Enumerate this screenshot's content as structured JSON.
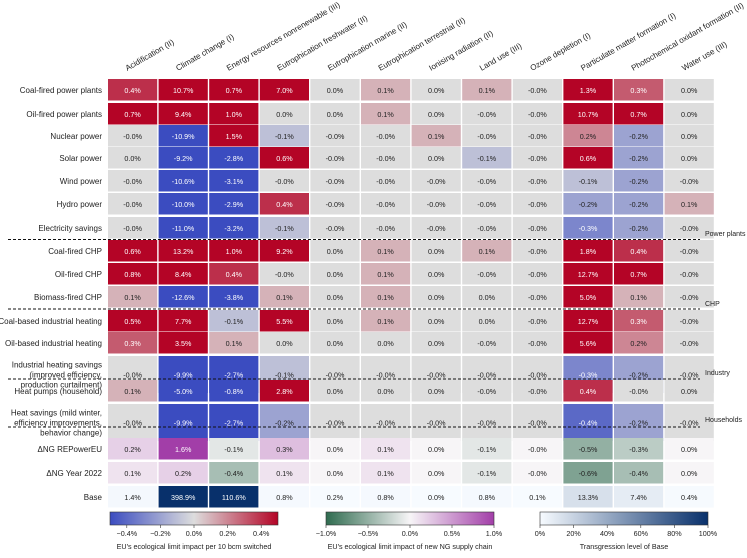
{
  "chart_data": {
    "type": "heatmap",
    "columns": [
      "Acidification (II)",
      "Climate change (I)",
      "Energy resources nonrenewable (III)",
      "Eutrophication freshwater (II)",
      "Eutrophication marine (II)",
      "Eutrophication terrestrial (II)",
      "Ionising radiation (II)",
      "Land use (III)",
      "Ozone depletion (I)",
      "Particulate matter formation (I)",
      "Photochemical oxidant formation (II)",
      "Water use (III)"
    ],
    "rows": [
      {
        "label": [
          "Coal-fired power plants"
        ],
        "cells": [
          "0.4%",
          "10.7%",
          "0.7%",
          "7.0%",
          "0.0%",
          "0.1%",
          "0.0%",
          "0.1%",
          "-0.0%",
          "1.3%",
          "0.3%",
          "0.0%"
        ],
        "values": [
          0.4,
          10.7,
          0.7,
          7.0,
          0.0,
          0.1,
          0.0,
          0.1,
          -0.0,
          1.3,
          0.3,
          0.0
        ]
      },
      {
        "label": [
          "Oil-fired power plants"
        ],
        "cells": [
          "0.7%",
          "9.4%",
          "1.0%",
          "0.0%",
          "0.0%",
          "0.1%",
          "0.0%",
          "-0.0%",
          "-0.0%",
          "10.7%",
          "0.7%",
          "0.0%"
        ],
        "values": [
          0.7,
          9.4,
          1.0,
          0.0,
          0.0,
          0.1,
          0.0,
          -0.0,
          -0.0,
          10.7,
          0.7,
          0.0
        ]
      },
      {
        "label": [
          "Nuclear power"
        ],
        "cells": [
          "-0.0%",
          "-10.9%",
          "1.5%",
          "-0.1%",
          "-0.0%",
          "-0.0%",
          "0.1%",
          "-0.0%",
          "-0.0%",
          "0.2%",
          "-0.2%",
          "0.0%"
        ],
        "values": [
          -0.0,
          -10.9,
          1.5,
          -0.1,
          -0.0,
          -0.0,
          0.1,
          -0.0,
          -0.0,
          0.2,
          -0.2,
          0.0
        ]
      },
      {
        "label": [
          "Solar power"
        ],
        "cells": [
          "0.0%",
          "-9.2%",
          "-2.8%",
          "0.6%",
          "-0.0%",
          "-0.0%",
          "0.0%",
          "-0.1%",
          "-0.0%",
          "0.6%",
          "-0.2%",
          "0.0%"
        ],
        "values": [
          0.0,
          -9.2,
          -2.8,
          0.6,
          -0.0,
          -0.0,
          0.0,
          -0.1,
          -0.0,
          0.6,
          -0.2,
          0.0
        ]
      },
      {
        "label": [
          "Wind power"
        ],
        "cells": [
          "-0.0%",
          "-10.6%",
          "-3.1%",
          "-0.0%",
          "-0.0%",
          "-0.0%",
          "-0.0%",
          "-0.0%",
          "-0.0%",
          "-0.1%",
          "-0.2%",
          "-0.0%"
        ],
        "values": [
          -0.0,
          -10.6,
          -3.1,
          -0.0,
          -0.0,
          -0.0,
          -0.0,
          -0.0,
          -0.0,
          -0.1,
          -0.2,
          -0.0
        ]
      },
      {
        "label": [
          "Hydro power"
        ],
        "cells": [
          "-0.0%",
          "-10.0%",
          "-2.9%",
          "0.4%",
          "-0.0%",
          "-0.0%",
          "-0.0%",
          "-0.0%",
          "-0.0%",
          "-0.2%",
          "-0.2%",
          "0.1%"
        ],
        "values": [
          -0.0,
          -10.0,
          -2.9,
          0.4,
          -0.0,
          -0.0,
          -0.0,
          -0.0,
          -0.0,
          -0.2,
          -0.2,
          0.1
        ]
      },
      {
        "label": [
          "Electricity savings"
        ],
        "cells": [
          "-0.0%",
          "-11.0%",
          "-3.2%",
          "-0.1%",
          "-0.0%",
          "-0.0%",
          "-0.0%",
          "-0.0%",
          "-0.0%",
          "-0.3%",
          "-0.2%",
          "-0.0%"
        ],
        "values": [
          -0.0,
          -11.0,
          -3.2,
          -0.1,
          -0.0,
          -0.0,
          -0.0,
          -0.0,
          -0.0,
          -0.3,
          -0.2,
          -0.0
        ]
      },
      {
        "label": [
          "Coal-fired CHP"
        ],
        "cells": [
          "0.6%",
          "13.2%",
          "1.0%",
          "9.2%",
          "0.0%",
          "0.1%",
          "0.0%",
          "0.1%",
          "-0.0%",
          "1.8%",
          "0.4%",
          "-0.0%"
        ],
        "values": [
          0.6,
          13.2,
          1.0,
          9.2,
          0.0,
          0.1,
          0.0,
          0.1,
          -0.0,
          1.8,
          0.4,
          -0.0
        ]
      },
      {
        "label": [
          "Oil-fired CHP"
        ],
        "cells": [
          "0.8%",
          "8.4%",
          "0.4%",
          "-0.0%",
          "0.0%",
          "0.1%",
          "0.0%",
          "-0.0%",
          "-0.0%",
          "12.7%",
          "0.7%",
          "-0.0%"
        ],
        "values": [
          0.8,
          8.4,
          0.4,
          -0.0,
          0.0,
          0.1,
          0.0,
          -0.0,
          -0.0,
          12.7,
          0.7,
          -0.0
        ]
      },
      {
        "label": [
          "Biomass-fired CHP"
        ],
        "cells": [
          "0.1%",
          "-12.6%",
          "-3.8%",
          "0.1%",
          "0.0%",
          "0.1%",
          "0.0%",
          "0.0%",
          "-0.0%",
          "5.0%",
          "0.1%",
          "-0.0%"
        ],
        "values": [
          0.1,
          -12.6,
          -3.8,
          0.1,
          0.0,
          0.1,
          0.0,
          0.0,
          -0.0,
          5.0,
          0.1,
          -0.0
        ]
      },
      {
        "label": [
          "Coal-based industrial heating"
        ],
        "cells": [
          "0.5%",
          "7.7%",
          "-0.1%",
          "5.5%",
          "0.0%",
          "0.1%",
          "0.0%",
          "0.0%",
          "-0.0%",
          "12.7%",
          "0.3%",
          "-0.0%"
        ],
        "values": [
          0.5,
          7.7,
          -0.1,
          5.5,
          0.0,
          0.1,
          0.0,
          0.0,
          -0.0,
          12.7,
          0.3,
          -0.0
        ]
      },
      {
        "label": [
          "Oil-based industrial heating"
        ],
        "cells": [
          "0.3%",
          "3.5%",
          "0.1%",
          "0.0%",
          "0.0%",
          "0.0%",
          "0.0%",
          "-0.0%",
          "-0.0%",
          "5.6%",
          "0.2%",
          "-0.0%"
        ],
        "values": [
          0.3,
          3.5,
          0.1,
          0.0,
          0.0,
          0.0,
          0.0,
          -0.0,
          -0.0,
          5.6,
          0.2,
          -0.0
        ]
      },
      {
        "label": [
          "Industrial heating savings",
          "(improved efficiency,",
          "production curtailment)"
        ],
        "cells": [
          "-0.0%",
          "-9.9%",
          "-2.7%",
          "-0.1%",
          "-0.0%",
          "-0.0%",
          "-0.0%",
          "-0.0%",
          "-0.0%",
          "-0.3%",
          "-0.2%",
          "-0.0%"
        ],
        "values": [
          -0.0,
          -9.9,
          -2.7,
          -0.1,
          -0.0,
          -0.0,
          -0.0,
          -0.0,
          -0.0,
          -0.3,
          -0.2,
          -0.0
        ]
      },
      {
        "label": [
          "Heat pumps (household)"
        ],
        "cells": [
          "0.1%",
          "-5.0%",
          "-0.8%",
          "2.8%",
          "0.0%",
          "0.0%",
          "0.0%",
          "-0.0%",
          "-0.0%",
          "0.4%",
          "-0.0%",
          "0.0%"
        ],
        "values": [
          0.1,
          -5.0,
          -0.8,
          2.8,
          0.0,
          0.0,
          0.0,
          -0.0,
          -0.0,
          0.4,
          -0.0,
          0.0
        ]
      },
      {
        "label": [
          "Heat savings (mild winter,",
          "efficiency improvements,",
          "behavior change)"
        ],
        "cells": [
          "-0.0%",
          "-9.9%",
          "-2.7%",
          "-0.2%",
          "-0.0%",
          "-0.0%",
          "-0.0%",
          "-0.0%",
          "-0.0%",
          "-0.4%",
          "-0.2%",
          "-0.0%"
        ],
        "values": [
          -0.0,
          -9.9,
          -2.7,
          -0.2,
          -0.0,
          -0.0,
          -0.0,
          -0.0,
          -0.0,
          -0.4,
          -0.2,
          -0.0
        ]
      },
      {
        "label": [
          "ΔNG REPowerEU"
        ],
        "cells": [
          "0.2%",
          "1.6%",
          "-0.1%",
          "0.3%",
          "0.0%",
          "0.1%",
          "0.0%",
          "-0.1%",
          "-0.0%",
          "-0.5%",
          "-0.3%",
          "0.0%"
        ],
        "values": [
          0.2,
          1.6,
          -0.1,
          0.3,
          0.0,
          0.1,
          0.0,
          -0.1,
          -0.0,
          -0.5,
          -0.3,
          0.0
        ]
      },
      {
        "label": [
          "ΔNG Year 2022"
        ],
        "cells": [
          "0.1%",
          "0.2%",
          "-0.4%",
          "0.1%",
          "0.0%",
          "0.1%",
          "0.0%",
          "-0.1%",
          "-0.0%",
          "-0.6%",
          "-0.4%",
          "0.0%"
        ],
        "values": [
          0.1,
          0.2,
          -0.4,
          0.1,
          0.0,
          0.1,
          0.0,
          -0.1,
          -0.0,
          -0.6,
          -0.4,
          0.0
        ]
      },
      {
        "label": [
          "Base"
        ],
        "cells": [
          "1.4%",
          "398.9%",
          "110.6%",
          "0.8%",
          "0.2%",
          "0.8%",
          "0.0%",
          "0.8%",
          "0.1%",
          "13.3%",
          "7.4%",
          "0.4%"
        ],
        "values": [
          1.4,
          398.9,
          110.6,
          0.8,
          0.2,
          0.8,
          0.0,
          0.8,
          0.1,
          13.3,
          7.4,
          0.4
        ]
      }
    ],
    "group_labels": [
      "Power plants",
      "CHP",
      "Industry",
      "Households"
    ],
    "colorbars": [
      {
        "label": "EU's ecological limit impact per 10 bcm switched",
        "ticks": [
          "−0.4%",
          "−0.2%",
          "0.0%",
          "0.2%",
          "0.4%"
        ],
        "range": [
          -0.5,
          0.5
        ]
      },
      {
        "label": "EU's ecological limit impact of new NG supply chain",
        "ticks": [
          "−1.0%",
          "−0.5%",
          "0.0%",
          "0.5%",
          "1.0%"
        ],
        "range": [
          -1.0,
          1.0
        ]
      },
      {
        "label": "Transgression level of Base",
        "ticks": [
          "0%",
          "20%",
          "40%",
          "60%",
          "80%",
          "100%"
        ],
        "range": [
          0,
          100
        ]
      }
    ],
    "colors": {
      "div_neg": "#3b4cc0",
      "div_mid": "#dddddd",
      "div_pos": "#b40426",
      "ng_neg": "#2f6b4f",
      "ng_mid": "#f7f5f7",
      "ng_pos": "#a23ea8",
      "base_low": "#f7fbff",
      "base_high": "#08306b"
    }
  }
}
